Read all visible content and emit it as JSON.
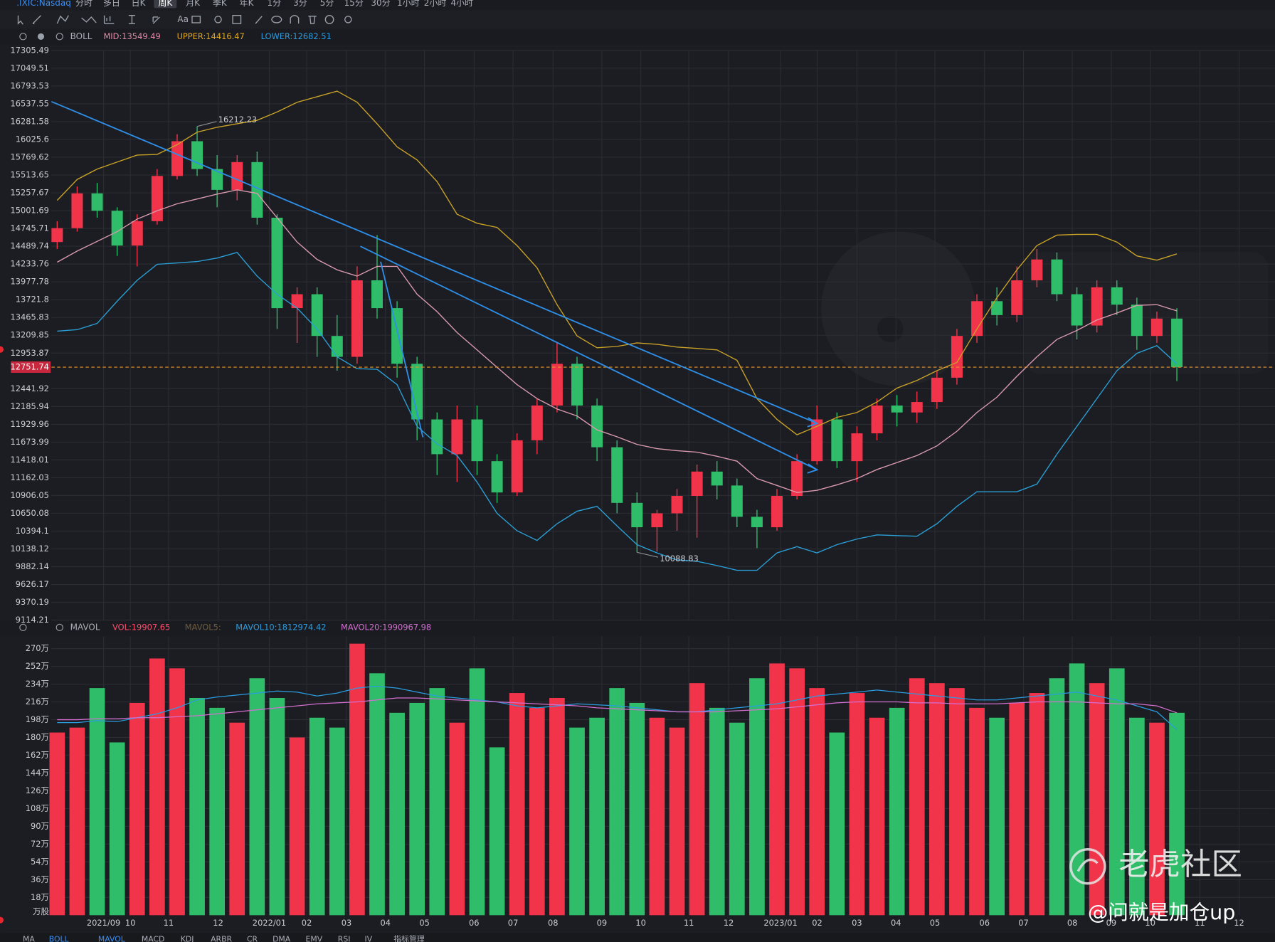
{
  "toolbar": {
    "symbol": ".IXIC:Nasdaq",
    "periods": [
      "分时",
      "多日",
      "日K",
      "周K",
      "月K",
      "季K",
      "年K",
      "1分",
      "3分",
      "5分",
      "15分",
      "30分",
      "1小时",
      "2小时",
      "4小时"
    ],
    "selected_period": "周K"
  },
  "chart_data": [
    {
      "type": "candlestick",
      "indicator": "BOLL",
      "categories": [
        null,
        null,
        null,
        null,
        null,
        null,
        null,
        null,
        null,
        null,
        null,
        null,
        null,
        null,
        null,
        null,
        null,
        null,
        null,
        null,
        null,
        null,
        null,
        null,
        null,
        null,
        null,
        null,
        null,
        null,
        null,
        null,
        null,
        null,
        null,
        null,
        null,
        null,
        null,
        null,
        null,
        null,
        null,
        null,
        null,
        null,
        null,
        null,
        null,
        null,
        null,
        null,
        null,
        null,
        null,
        null,
        null
      ],
      "open": [
        14550,
        14750,
        15250,
        15000,
        14500,
        14850,
        15500,
        16000,
        15600,
        15300,
        15700,
        14900,
        13600,
        13800,
        13200,
        12900,
        14000,
        13600,
        12800,
        12000,
        11500,
        12000,
        11400,
        10950,
        11700,
        12200,
        12800,
        12200,
        11600,
        10800,
        10450,
        10650,
        10900,
        11250,
        11050,
        10600,
        10450,
        10900,
        11400,
        12000,
        11400,
        11800,
        12200,
        12100,
        12250,
        12600,
        13200,
        13700,
        13500,
        14000,
        14300,
        13800,
        13350,
        13900,
        13650,
        13200,
        13450
      ],
      "high": [
        14850,
        15350,
        15400,
        15050,
        14950,
        15600,
        16100,
        16212.23,
        15800,
        15800,
        15850,
        14950,
        13900,
        13900,
        13500,
        14200,
        14650,
        13700,
        12900,
        12100,
        12200,
        12200,
        11500,
        11800,
        12300,
        13100,
        12900,
        12300,
        11700,
        10950,
        10700,
        11000,
        11350,
        11400,
        11150,
        10700,
        11000,
        11500,
        12200,
        12100,
        11900,
        12300,
        12350,
        12400,
        12700,
        13300,
        13800,
        13900,
        14200,
        14450,
        14400,
        13900,
        14000,
        14000,
        13750,
        13550,
        13600
      ],
      "low": [
        14450,
        14700,
        14900,
        14350,
        14200,
        14800,
        15450,
        15500,
        15050,
        15150,
        14800,
        13300,
        13100,
        12900,
        12700,
        12800,
        13450,
        12600,
        11700,
        11200,
        11100,
        11200,
        10800,
        10900,
        11500,
        12100,
        12000,
        11400,
        10650,
        10088.83,
        10100,
        10400,
        10300,
        10850,
        10450,
        10150,
        10400,
        10850,
        11350,
        11300,
        11100,
        11700,
        11900,
        11950,
        12150,
        12500,
        13100,
        13350,
        13400,
        13900,
        13700,
        13150,
        13250,
        13500,
        13000,
        13100,
        12550
      ],
      "close": [
        14750,
        15250,
        15000,
        14500,
        14850,
        15500,
        16000,
        15600,
        15300,
        15700,
        14900,
        13600,
        13800,
        13200,
        12900,
        14000,
        13600,
        12800,
        12000,
        11500,
        12000,
        11400,
        10950,
        11700,
        12200,
        12800,
        12200,
        11600,
        10800,
        10450,
        10650,
        10900,
        11250,
        11050,
        10600,
        10450,
        10900,
        11400,
        12000,
        11400,
        11800,
        12200,
        12100,
        12250,
        12600,
        13200,
        13700,
        13500,
        14000,
        14300,
        13800,
        13350,
        13900,
        13650,
        13200,
        13450,
        12751.74
      ],
      "up_color": "#f2344b",
      "down_color": "#2fbd6a",
      "series": [
        {
          "name": "MID:13549.49",
          "color": "#e08aa4",
          "line_color": "#d99aae",
          "values": [
            14260,
            14420,
            14560,
            14700,
            14880,
            15000,
            15100,
            15170,
            15240,
            15300,
            15250,
            14900,
            14550,
            14300,
            14150,
            14060,
            14200,
            14200,
            13800,
            13550,
            13250,
            13000,
            12750,
            12500,
            12300,
            12150,
            12050,
            11850,
            11750,
            11640,
            11580,
            11550,
            11530,
            11470,
            11400,
            11150,
            11050,
            10950,
            10980,
            11060,
            11150,
            11280,
            11380,
            11480,
            11620,
            11830,
            12100,
            12320,
            12620,
            12900,
            13150,
            13280,
            13430,
            13530,
            13640,
            13650,
            13560
          ]
        },
        {
          "name": "UPPER:14416.47",
          "color": "#e0a81e",
          "line_color": "#c9a227",
          "values": [
            15150,
            15450,
            15600,
            15700,
            15800,
            15810,
            15950,
            16130,
            16200,
            16250,
            16300,
            16420,
            16560,
            16640,
            16720,
            16560,
            16250,
            15920,
            15730,
            15420,
            14950,
            14820,
            14760,
            14500,
            14180,
            13650,
            13200,
            13030,
            13050,
            13100,
            13080,
            13040,
            13020,
            13000,
            12850,
            12300,
            12000,
            11780,
            11900,
            12030,
            12100,
            12250,
            12450,
            12560,
            12700,
            12820,
            13300,
            13750,
            14150,
            14500,
            14650,
            14660,
            14660,
            14550,
            14350,
            14290,
            14380
          ]
        },
        {
          "name": "LOWER:12682.51",
          "color": "#2a9ce0",
          "line_color": "#2a9fd6",
          "values": [
            13270,
            13290,
            13380,
            13700,
            14000,
            14230,
            14250,
            14270,
            14320,
            14400,
            14060,
            13800,
            13600,
            13300,
            12900,
            12730,
            12720,
            12500,
            11900,
            11650,
            11480,
            11100,
            10650,
            10400,
            10260,
            10500,
            10680,
            10750,
            10470,
            10200,
            10080,
            9980,
            9960,
            9900,
            9830,
            9830,
            10080,
            10170,
            10080,
            10200,
            10280,
            10340,
            10330,
            10320,
            10500,
            10750,
            10960,
            10960,
            10960,
            11070,
            11500,
            11900,
            12300,
            12700,
            12950,
            13060,
            12800
          ]
        }
      ],
      "ylim": [
        9114.21,
        17305.49
      ],
      "yticks": [
        17305.49,
        17049.51,
        16793.53,
        16537.55,
        16281.58,
        16025.6,
        15769.62,
        15513.65,
        15257.67,
        15001.69,
        14745.71,
        14489.74,
        14233.76,
        13977.78,
        13721.8,
        13465.83,
        13209.85,
        12953.87,
        12441.92,
        12185.94,
        11929.96,
        11673.99,
        11418.01,
        11162.03,
        10906.05,
        10650.08,
        10394.1,
        10138.12,
        9882.14,
        9626.17,
        9370.19,
        9114.21
      ],
      "current_price_color": "#e8962a",
      "grid": true
    },
    {
      "type": "bar",
      "indicator": "MAVOL",
      "values": [
        185,
        190,
        230,
        175,
        215,
        260,
        250,
        220,
        210,
        195,
        240,
        220,
        180,
        200,
        190,
        275,
        245,
        205,
        215,
        230,
        195,
        250,
        170,
        225,
        210,
        220,
        190,
        200,
        230,
        215,
        200,
        190,
        235,
        210,
        195,
        240,
        255,
        250,
        230,
        185,
        225,
        200,
        210,
        240,
        235,
        230,
        210,
        200,
        215,
        225,
        240,
        255,
        235,
        250,
        200,
        195,
        205
      ],
      "legend_items": [
        {
          "name": "VOL:19907.65",
          "color": "#ff4d6a"
        },
        {
          "name": "MAVOL5:",
          "color": "#6e5c3c"
        }
      ],
      "series": [
        {
          "name": "MAVOL10:1812974.42",
          "color": "#2a9ce0",
          "values": [
            195,
            195,
            197,
            196,
            200,
            204,
            210,
            218,
            221,
            223,
            225,
            227,
            226,
            222,
            225,
            230,
            232,
            230,
            226,
            222,
            220,
            218,
            216,
            212,
            210,
            212,
            214,
            213,
            212,
            210,
            208,
            206,
            206,
            208,
            210,
            212,
            214,
            218,
            222,
            224,
            226,
            228,
            226,
            224,
            222,
            220,
            218,
            218,
            220,
            222,
            224,
            226,
            222,
            218,
            212,
            206,
            188
          ]
        },
        {
          "name": "MAVOL20:1990967.98",
          "color": "#d36fd0",
          "values": [
            198,
            198,
            199,
            199,
            200,
            200,
            201,
            202,
            204,
            206,
            208,
            210,
            212,
            214,
            215,
            216,
            218,
            220,
            220,
            219,
            218,
            217,
            216,
            215,
            214,
            213,
            212,
            210,
            209,
            208,
            207,
            206,
            206,
            206,
            207,
            208,
            209,
            211,
            213,
            215,
            216,
            216,
            216,
            215,
            215,
            214,
            214,
            214,
            215,
            216,
            216,
            216,
            215,
            214,
            214,
            212,
            205
          ]
        }
      ],
      "ylim": [
        0,
        281
      ],
      "yticks": [
        {
          "value": 270,
          "label": "270万"
        },
        {
          "value": 252,
          "label": "252万"
        },
        {
          "value": 234,
          "label": "234万"
        },
        {
          "value": 216,
          "label": "216万"
        },
        {
          "value": 198,
          "label": "198万"
        },
        {
          "value": 180,
          "label": "180万"
        },
        {
          "value": 162,
          "label": "162万"
        },
        {
          "value": 144,
          "label": "144万"
        },
        {
          "value": 126,
          "label": "126万"
        },
        {
          "value": 108,
          "label": "108万"
        },
        {
          "value": 90,
          "label": "90万"
        },
        {
          "value": 72,
          "label": "72万"
        },
        {
          "value": 54,
          "label": "54万"
        },
        {
          "value": 36,
          "label": "36万"
        },
        {
          "value": 18,
          "label": "18万"
        }
      ],
      "unit": "万股",
      "xticks": [
        {
          "value": 2.32,
          "label": "2021/09"
        },
        {
          "value": 3.66,
          "label": "10"
        },
        {
          "value": 5.57,
          "label": "11"
        },
        {
          "value": 8.05,
          "label": "12"
        },
        {
          "value": 10.61,
          "label": "2022/01"
        },
        {
          "value": 12.48,
          "label": "02"
        },
        {
          "value": 14.47,
          "label": "03"
        },
        {
          "value": 16.42,
          "label": "04"
        },
        {
          "value": 18.37,
          "label": "05"
        },
        {
          "value": 20.85,
          "label": "06"
        },
        {
          "value": 22.8,
          "label": "07"
        },
        {
          "value": 24.8,
          "label": "08"
        },
        {
          "value": 27.24,
          "label": "09"
        },
        {
          "value": 29.19,
          "label": "10"
        },
        {
          "value": 31.59,
          "label": "11"
        },
        {
          "value": 33.58,
          "label": "12"
        },
        {
          "value": 36.18,
          "label": "2023/01"
        },
        {
          "value": 38.01,
          "label": "02"
        },
        {
          "value": 40,
          "label": "03"
        },
        {
          "value": 41.95,
          "label": "04"
        },
        {
          "value": 43.9,
          "label": "05"
        },
        {
          "value": 46.38,
          "label": "06"
        },
        {
          "value": 48.33,
          "label": "07"
        },
        {
          "value": 50.77,
          "label": "08"
        },
        {
          "value": 52.72,
          "label": "09"
        },
        {
          "value": 54.67,
          "label": "10"
        },
        {
          "value": 57.15,
          "label": "11"
        },
        {
          "value": 59.11,
          "label": "12"
        }
      ],
      "grid": true
    }
  ],
  "tabs": [
    "MA",
    "BOLL",
    "MAVOL",
    "MACD",
    "KDJ",
    "ARBR",
    "CR",
    "DMA",
    "EMV",
    "RSI",
    "IV",
    "指标管理"
  ],
  "active_tabs": [
    "BOLL",
    "MAVOL"
  ],
  "watermark": "老虎社区",
  "credit": "@问就是加仓up"
}
